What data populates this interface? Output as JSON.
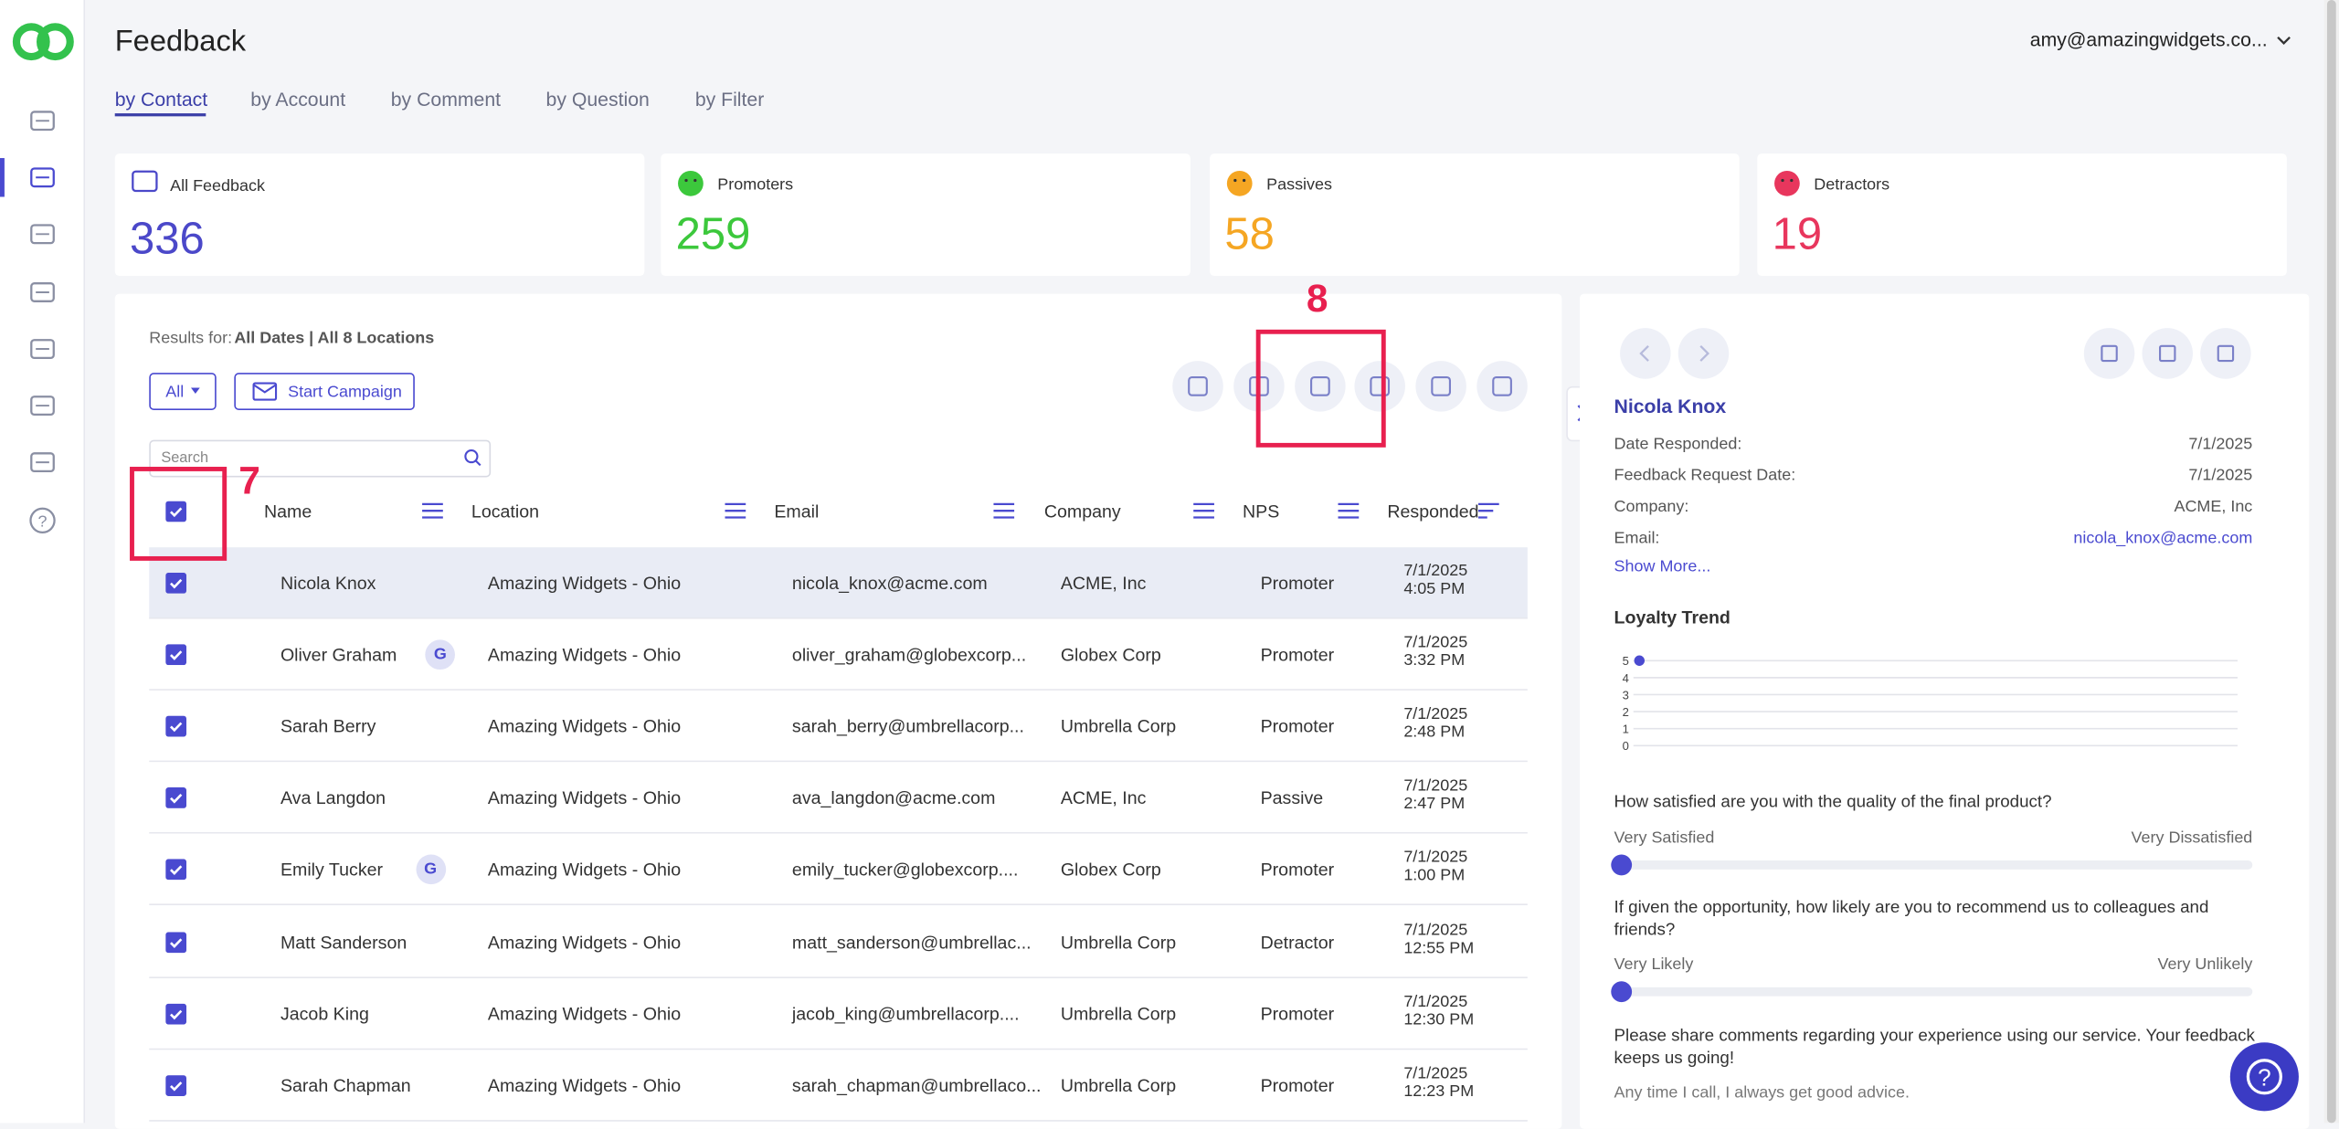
{
  "header": {
    "title": "Feedback",
    "user": "amy@amazingwidgets.co..."
  },
  "tabs": [
    "by Contact",
    "by Account",
    "by Comment",
    "by Question",
    "by Filter"
  ],
  "stats": [
    {
      "label": "All Feedback",
      "value": "336"
    },
    {
      "label": "Promoters",
      "value": "259"
    },
    {
      "label": "Passives",
      "value": "58"
    },
    {
      "label": "Detractors",
      "value": "19"
    }
  ],
  "results": {
    "prefix": "Results for:",
    "filter": "All Dates | All 8 Locations"
  },
  "buttons": {
    "all": "All",
    "campaign": "Start Campaign"
  },
  "search": {
    "placeholder": "Search"
  },
  "annotations": [
    "7",
    "8"
  ],
  "table": {
    "columns": [
      "Name",
      "Location",
      "Email",
      "Company",
      "NPS",
      "Responded"
    ],
    "rows": [
      {
        "name": "Nicola Knox",
        "location": "Amazing Widgets - Ohio",
        "email": "nicola_knox@acme.com",
        "company": "ACME, Inc",
        "nps": "Promoter",
        "date": "7/1/2025",
        "time": "4:05 PM"
      },
      {
        "name": "Oliver Graham",
        "badge": "G",
        "location": "Amazing Widgets - Ohio",
        "email": "oliver_graham@globexcorp...",
        "company": "Globex Corp",
        "nps": "Promoter",
        "date": "7/1/2025",
        "time": "3:32 PM"
      },
      {
        "name": "Sarah Berry",
        "location": "Amazing Widgets - Ohio",
        "email": "sarah_berry@umbrellacorp...",
        "company": "Umbrella Corp",
        "nps": "Promoter",
        "date": "7/1/2025",
        "time": "2:48 PM"
      },
      {
        "name": "Ava Langdon",
        "location": "Amazing Widgets - Ohio",
        "email": "ava_langdon@acme.com",
        "company": "ACME, Inc",
        "nps": "Passive",
        "date": "7/1/2025",
        "time": "2:47 PM"
      },
      {
        "name": "Emily Tucker",
        "badge": "G",
        "location": "Amazing Widgets - Ohio",
        "email": "emily_tucker@globexcorp....",
        "company": "Globex Corp",
        "nps": "Promoter",
        "date": "7/1/2025",
        "time": "1:00 PM"
      },
      {
        "name": "Matt Sanderson",
        "location": "Amazing Widgets - Ohio",
        "email": "matt_sanderson@umbrellac...",
        "company": "Umbrella Corp",
        "nps": "Detractor",
        "date": "7/1/2025",
        "time": "12:55 PM"
      },
      {
        "name": "Jacob King",
        "location": "Amazing Widgets - Ohio",
        "email": "jacob_king@umbrellacorp....",
        "company": "Umbrella Corp",
        "nps": "Promoter",
        "date": "7/1/2025",
        "time": "12:30 PM"
      },
      {
        "name": "Sarah Chapman",
        "location": "Amazing Widgets - Ohio",
        "email": "sarah_chapman@umbrellaco...",
        "company": "Umbrella Corp",
        "nps": "Promoter",
        "date": "7/1/2025",
        "time": "12:23 PM"
      }
    ]
  },
  "detail": {
    "name": "Nicola Knox",
    "fields": [
      {
        "label": "Date Responded:",
        "value": "7/1/2025"
      },
      {
        "label": "Feedback Request Date:",
        "value": "7/1/2025"
      },
      {
        "label": "Company:",
        "value": "ACME, Inc"
      },
      {
        "label": "Email:",
        "value": "nicola_knox@acme.com"
      }
    ],
    "show_more": "Show More...",
    "loyalty": {
      "title": "Loyalty Trend",
      "yticks": [
        5,
        4,
        3,
        2,
        1,
        0
      ],
      "values": [
        5
      ]
    },
    "questions": [
      {
        "text": "How satisfied are you with the quality of the final product?",
        "left": "Very Satisfied",
        "right": "Very Dissatisfied"
      },
      {
        "text": "If given the opportunity, how likely are you to recommend us to colleagues and friends?",
        "left": "Very Likely",
        "right": "Very Unlikely"
      }
    ],
    "comment_question": "Please share comments regarding your experience using our service.  Your feedback keeps us going!",
    "comment": "Any time I call, I always get good advice."
  }
}
